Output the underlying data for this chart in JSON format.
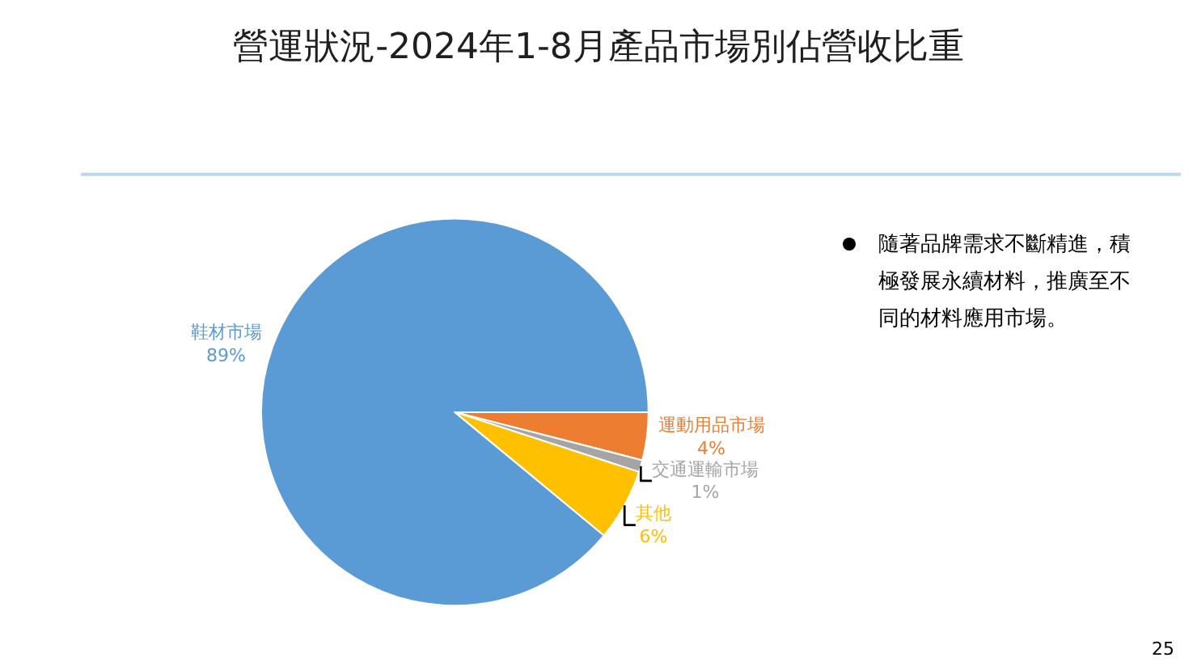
{
  "chart_data": {
    "type": "pie",
    "title": "營運狀況-2024年1-8月產品市場別佔營收比重",
    "categories": [
      "鞋材市場",
      "運動用品市場",
      "交通運輸市場",
      "其他"
    ],
    "values": [
      89,
      4,
      1,
      6
    ],
    "value_labels": [
      "89%",
      "4%",
      "1%",
      "6%"
    ],
    "colors": [
      "#5b9bd5",
      "#ed7d31",
      "#a5a5a5",
      "#ffc000"
    ],
    "annotations": [
      "隨著品牌需求不斷精進，積極發展永續材料，推廣至不同的材料應用市場。",
      "25"
    ]
  }
}
